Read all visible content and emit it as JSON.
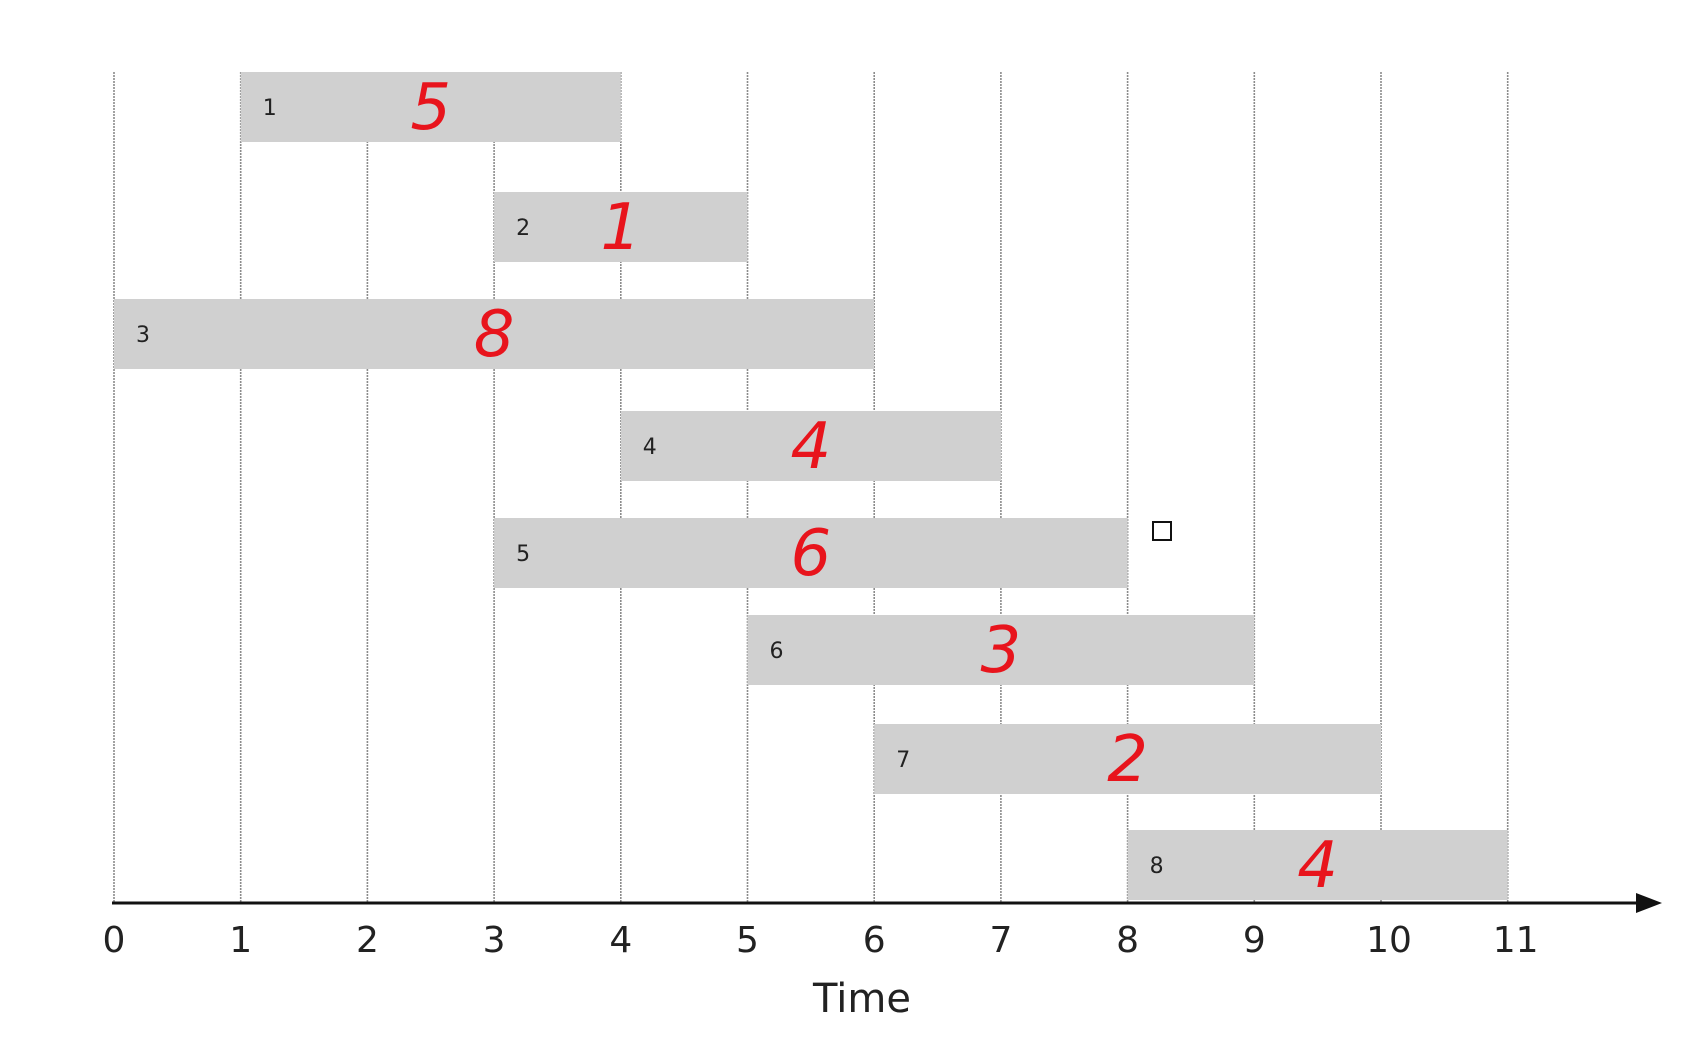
{
  "chart_data": {
    "type": "gantt",
    "xlabel": "Time",
    "x_ticks": [
      "0",
      "1",
      "2",
      "3",
      "4",
      "5",
      "6",
      "7",
      "8",
      "9",
      "10",
      "11"
    ],
    "xlim": [
      0,
      11
    ],
    "grid": true,
    "bars_color": "#d0d0d0",
    "weight_color": "#e8141c",
    "jobs": [
      {
        "id": "1",
        "start": 1,
        "end": 4,
        "weight": "5"
      },
      {
        "id": "2",
        "start": 3,
        "end": 5,
        "weight": "1"
      },
      {
        "id": "3",
        "start": 0,
        "end": 6,
        "weight": "8"
      },
      {
        "id": "4",
        "start": 4,
        "end": 7,
        "weight": "4"
      },
      {
        "id": "5",
        "start": 3,
        "end": 8,
        "weight": "6"
      },
      {
        "id": "6",
        "start": 5,
        "end": 9,
        "weight": "3"
      },
      {
        "id": "7",
        "start": 6,
        "end": 10,
        "weight": "2"
      },
      {
        "id": "8",
        "start": 8,
        "end": 11,
        "weight": "4"
      }
    ]
  },
  "marker_icon": "square-icon"
}
